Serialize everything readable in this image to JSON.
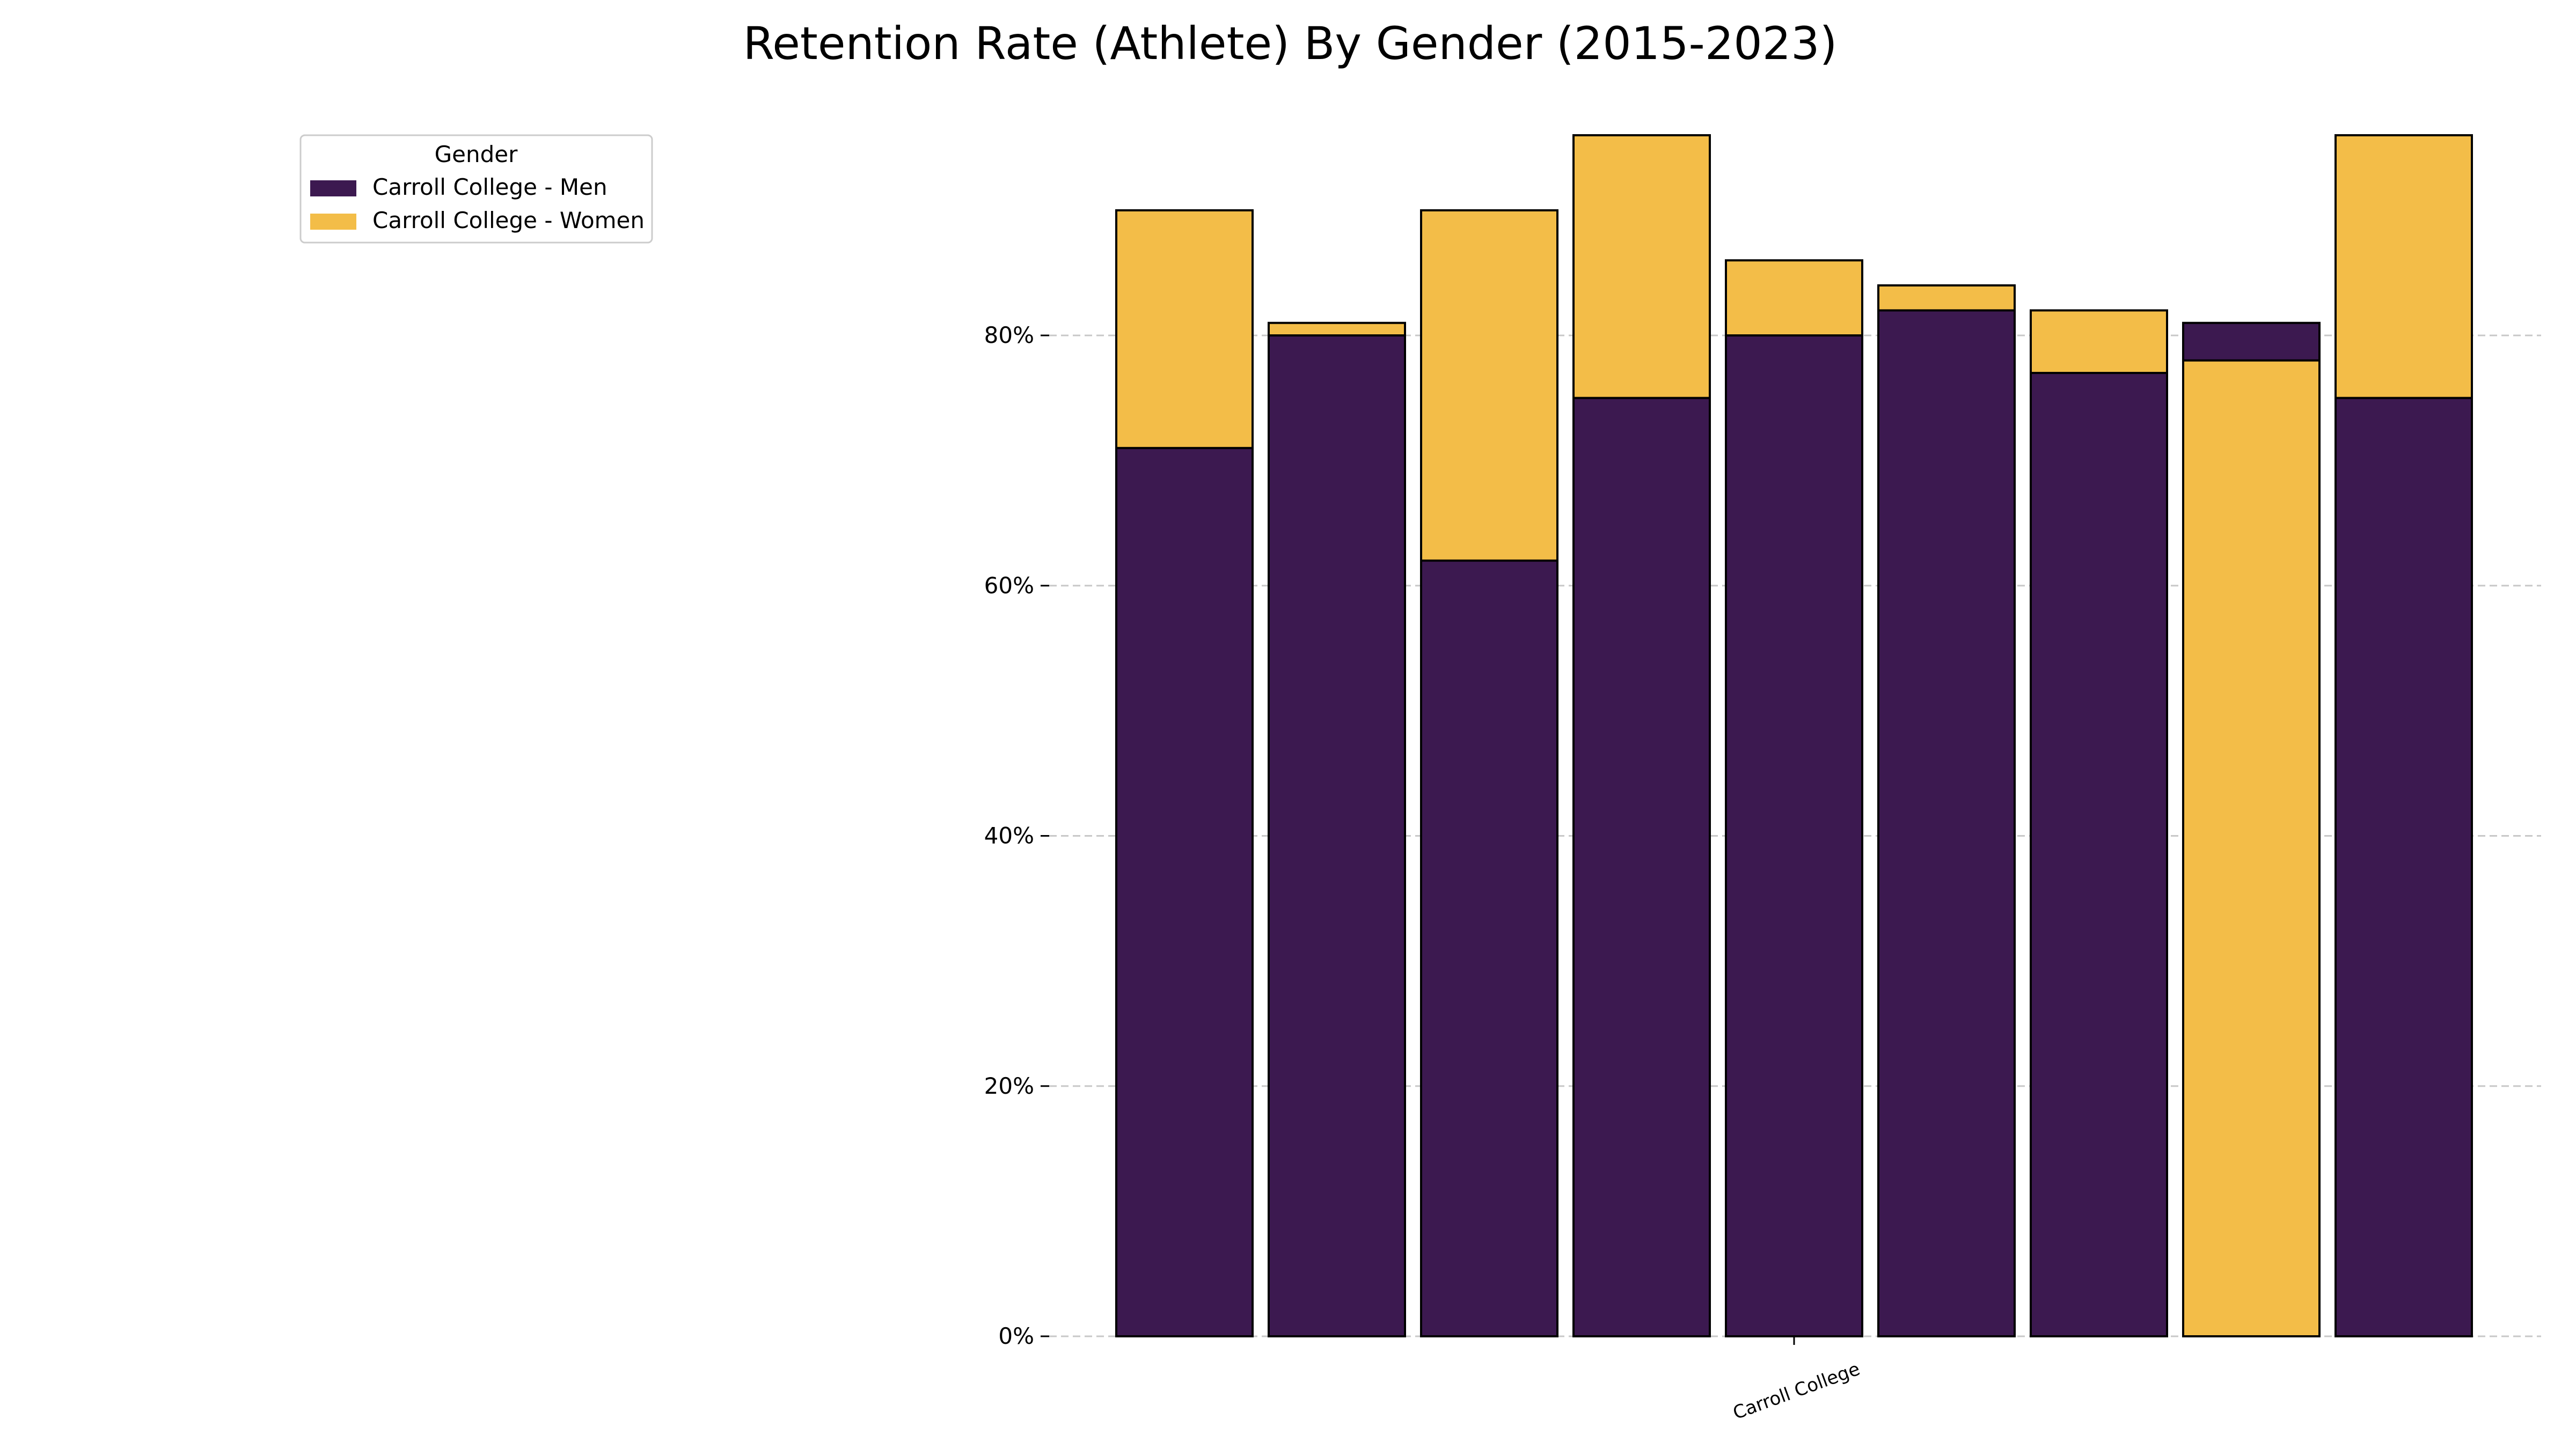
{
  "chart_data": {
    "type": "bar",
    "stacked": true,
    "title": "Retention Rate (Athlete) By Gender (2015-2023)",
    "xlabel": "",
    "ylabel": "",
    "category_label": "Carroll College",
    "ylim": [
      0,
      96
    ],
    "yticks": [
      0,
      20,
      40,
      60,
      80
    ],
    "ytick_labels": [
      "0%",
      "20%",
      "40%",
      "60%",
      "80%"
    ],
    "grid": true,
    "legend": {
      "title": "Gender",
      "placement": "upper-left"
    },
    "bars": [
      {
        "men": 71,
        "women": 90,
        "front": "men"
      },
      {
        "men": 80,
        "women": 81,
        "front": "men"
      },
      {
        "men": 62,
        "women": 90,
        "front": "men"
      },
      {
        "men": 75,
        "women": 96,
        "front": "men"
      },
      {
        "men": 80,
        "women": 86,
        "front": "men"
      },
      {
        "men": 82,
        "women": 84,
        "front": "men"
      },
      {
        "men": 77,
        "women": 82,
        "front": "men"
      },
      {
        "men": 81,
        "women": 78,
        "front": "women"
      },
      {
        "men": 75,
        "women": 96,
        "front": "men"
      }
    ],
    "series": [
      {
        "key": "men",
        "name": "Carroll College - Men",
        "color": "#3c1950"
      },
      {
        "key": "women",
        "name": "Carroll College - Women",
        "color": "#f3bd48"
      }
    ]
  }
}
